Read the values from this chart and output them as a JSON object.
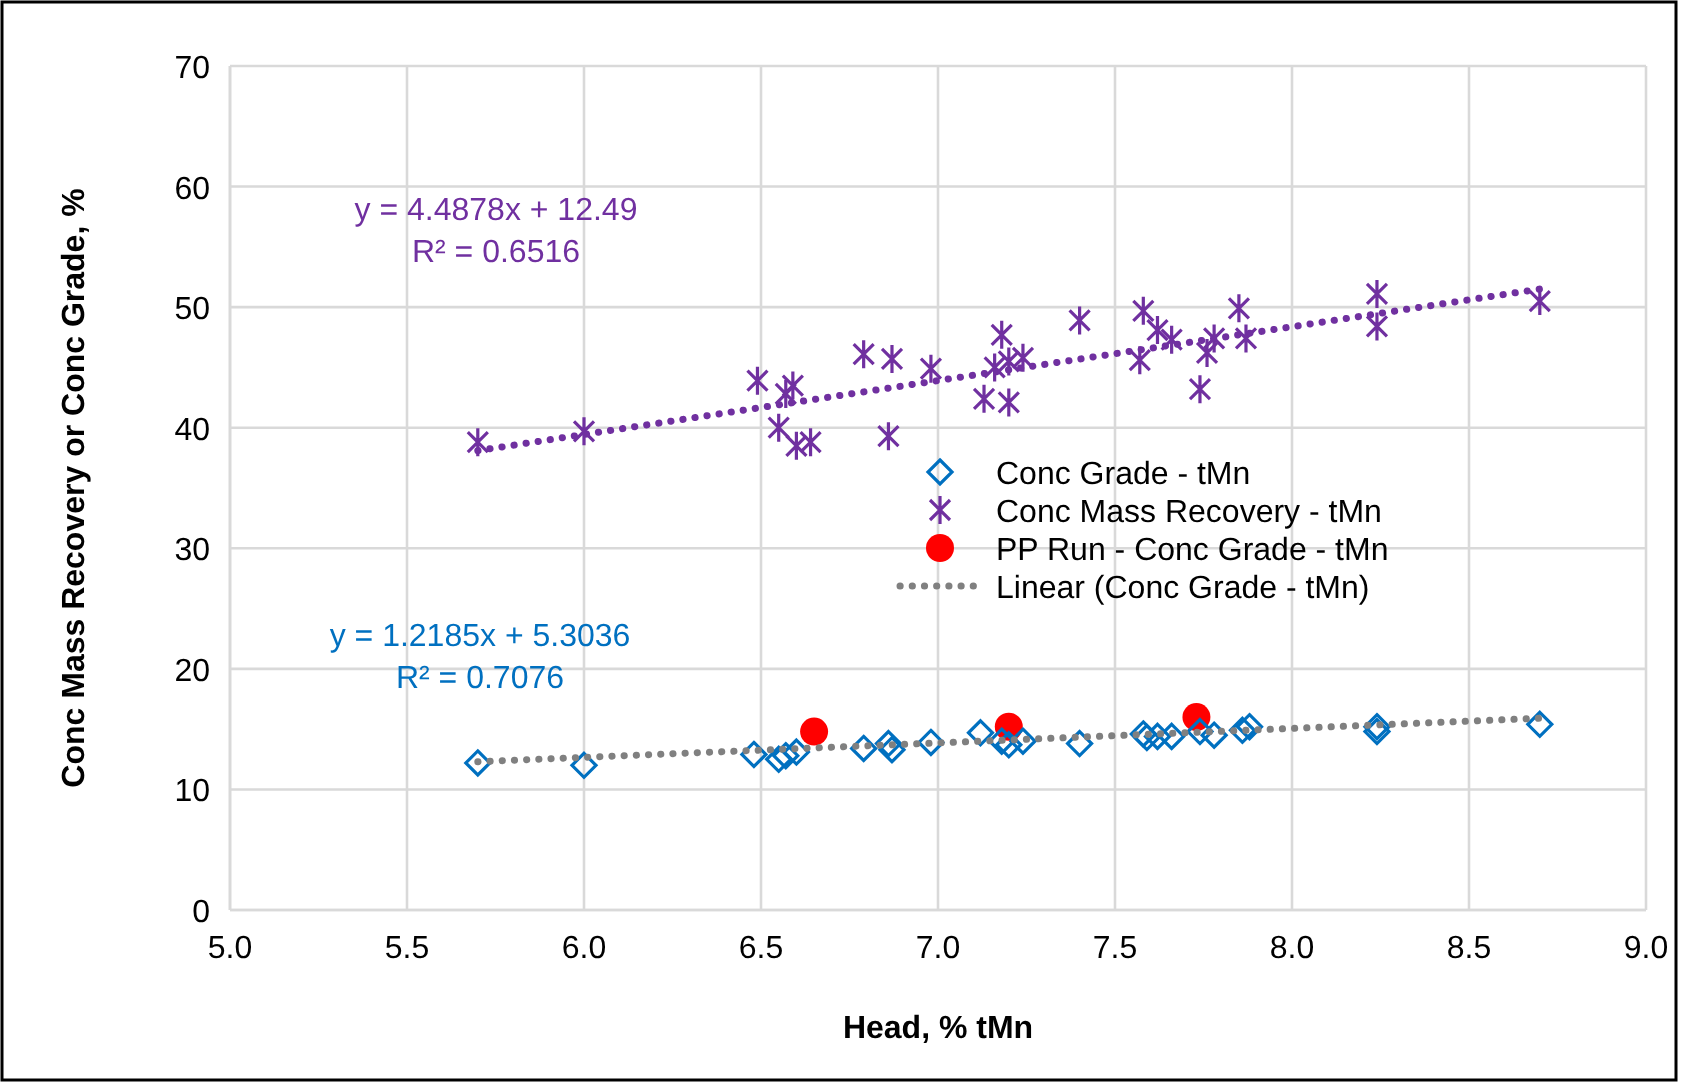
{
  "chart_data": {
    "type": "scatter",
    "xlabel": "Head, % tMn",
    "ylabel": "Conc Mass Recovery or Conc Grade, %",
    "xlim": [
      5,
      9
    ],
    "xticks": [
      {
        "value": 5,
        "label": "5.0"
      },
      {
        "value": 5.5,
        "label": "5.5"
      },
      {
        "value": 6,
        "label": "6.0"
      },
      {
        "value": 6.5,
        "label": "6.5"
      },
      {
        "value": 7,
        "label": "7.0"
      },
      {
        "value": 7.5,
        "label": "7.5"
      },
      {
        "value": 8,
        "label": "8.0"
      },
      {
        "value": 8.5,
        "label": "8.5"
      },
      {
        "value": 9,
        "label": "9.0"
      }
    ],
    "ylim": [
      0,
      70
    ],
    "yticks": [
      0,
      10,
      20,
      30,
      40,
      50,
      60,
      70
    ],
    "grid": true,
    "legend": "right",
    "annotations": [
      "y = 4.4878x + 12.49",
      "R² = 0.6516",
      "y = 1.2185x + 5.3036",
      "R² = 0.7076"
    ],
    "series": [
      {
        "name": "Conc Grade - tMn",
        "color": "#0070c0",
        "marker": "diamond",
        "x": [
          5.7,
          6.0,
          6.48,
          6.55,
          6.57,
          6.6,
          6.79,
          6.86,
          6.87,
          6.98,
          7.12,
          7.18,
          7.2,
          7.24,
          7.4,
          7.58,
          7.59,
          7.62,
          7.66,
          7.74,
          7.78,
          7.86,
          7.88,
          8.24,
          8.24,
          8.7
        ],
        "values": [
          12.2,
          12.0,
          12.9,
          12.5,
          12.8,
          13.1,
          13.4,
          13.8,
          13.3,
          13.9,
          14.7,
          14.0,
          13.7,
          14.0,
          13.8,
          14.6,
          14.3,
          14.4,
          14.4,
          14.8,
          14.5,
          14.9,
          15.2,
          15.2,
          14.8,
          15.4
        ]
      },
      {
        "name": "Conc Mass Recovery - tMn",
        "color": "#7030a0",
        "marker": "cross",
        "x": [
          5.7,
          6.0,
          6.49,
          6.55,
          6.57,
          6.59,
          6.6,
          6.64,
          6.79,
          6.86,
          6.87,
          6.98,
          7.13,
          7.16,
          7.18,
          7.2,
          7.2,
          7.24,
          7.4,
          7.57,
          7.58,
          7.62,
          7.66,
          7.74,
          7.76,
          7.78,
          7.85,
          7.87,
          8.24,
          8.24,
          8.7
        ],
        "values": [
          38.8,
          39.7,
          43.9,
          40.0,
          42.8,
          43.5,
          38.5,
          38.8,
          46.1,
          39.3,
          45.7,
          44.9,
          42.4,
          45.0,
          47.7,
          42.1,
          45.5,
          45.8,
          48.9,
          45.6,
          49.7,
          48.1,
          47.3,
          43.2,
          46.2,
          47.4,
          49.9,
          47.4,
          51.1,
          48.4,
          50.5
        ]
      },
      {
        "name": "PP Run - Conc Grade - tMn",
        "color": "#ff0000",
        "marker": "circle",
        "x": [
          6.65,
          7.2,
          7.73
        ],
        "values": [
          14.8,
          15.2,
          16.0
        ]
      },
      {
        "name": "Linear (Conc Grade - tMn)",
        "type": "line",
        "color": "#808080",
        "marker": "none",
        "line_style": "dotted",
        "x": [
          5.7,
          8.7
        ],
        "values": [
          12.3,
          15.9
        ]
      },
      {
        "type": "line",
        "color": "#7030a0",
        "marker": "none",
        "line_style": "dotted",
        "x": [
          5.7,
          8.7
        ],
        "values": [
          38.1,
          51.5
        ]
      }
    ]
  }
}
